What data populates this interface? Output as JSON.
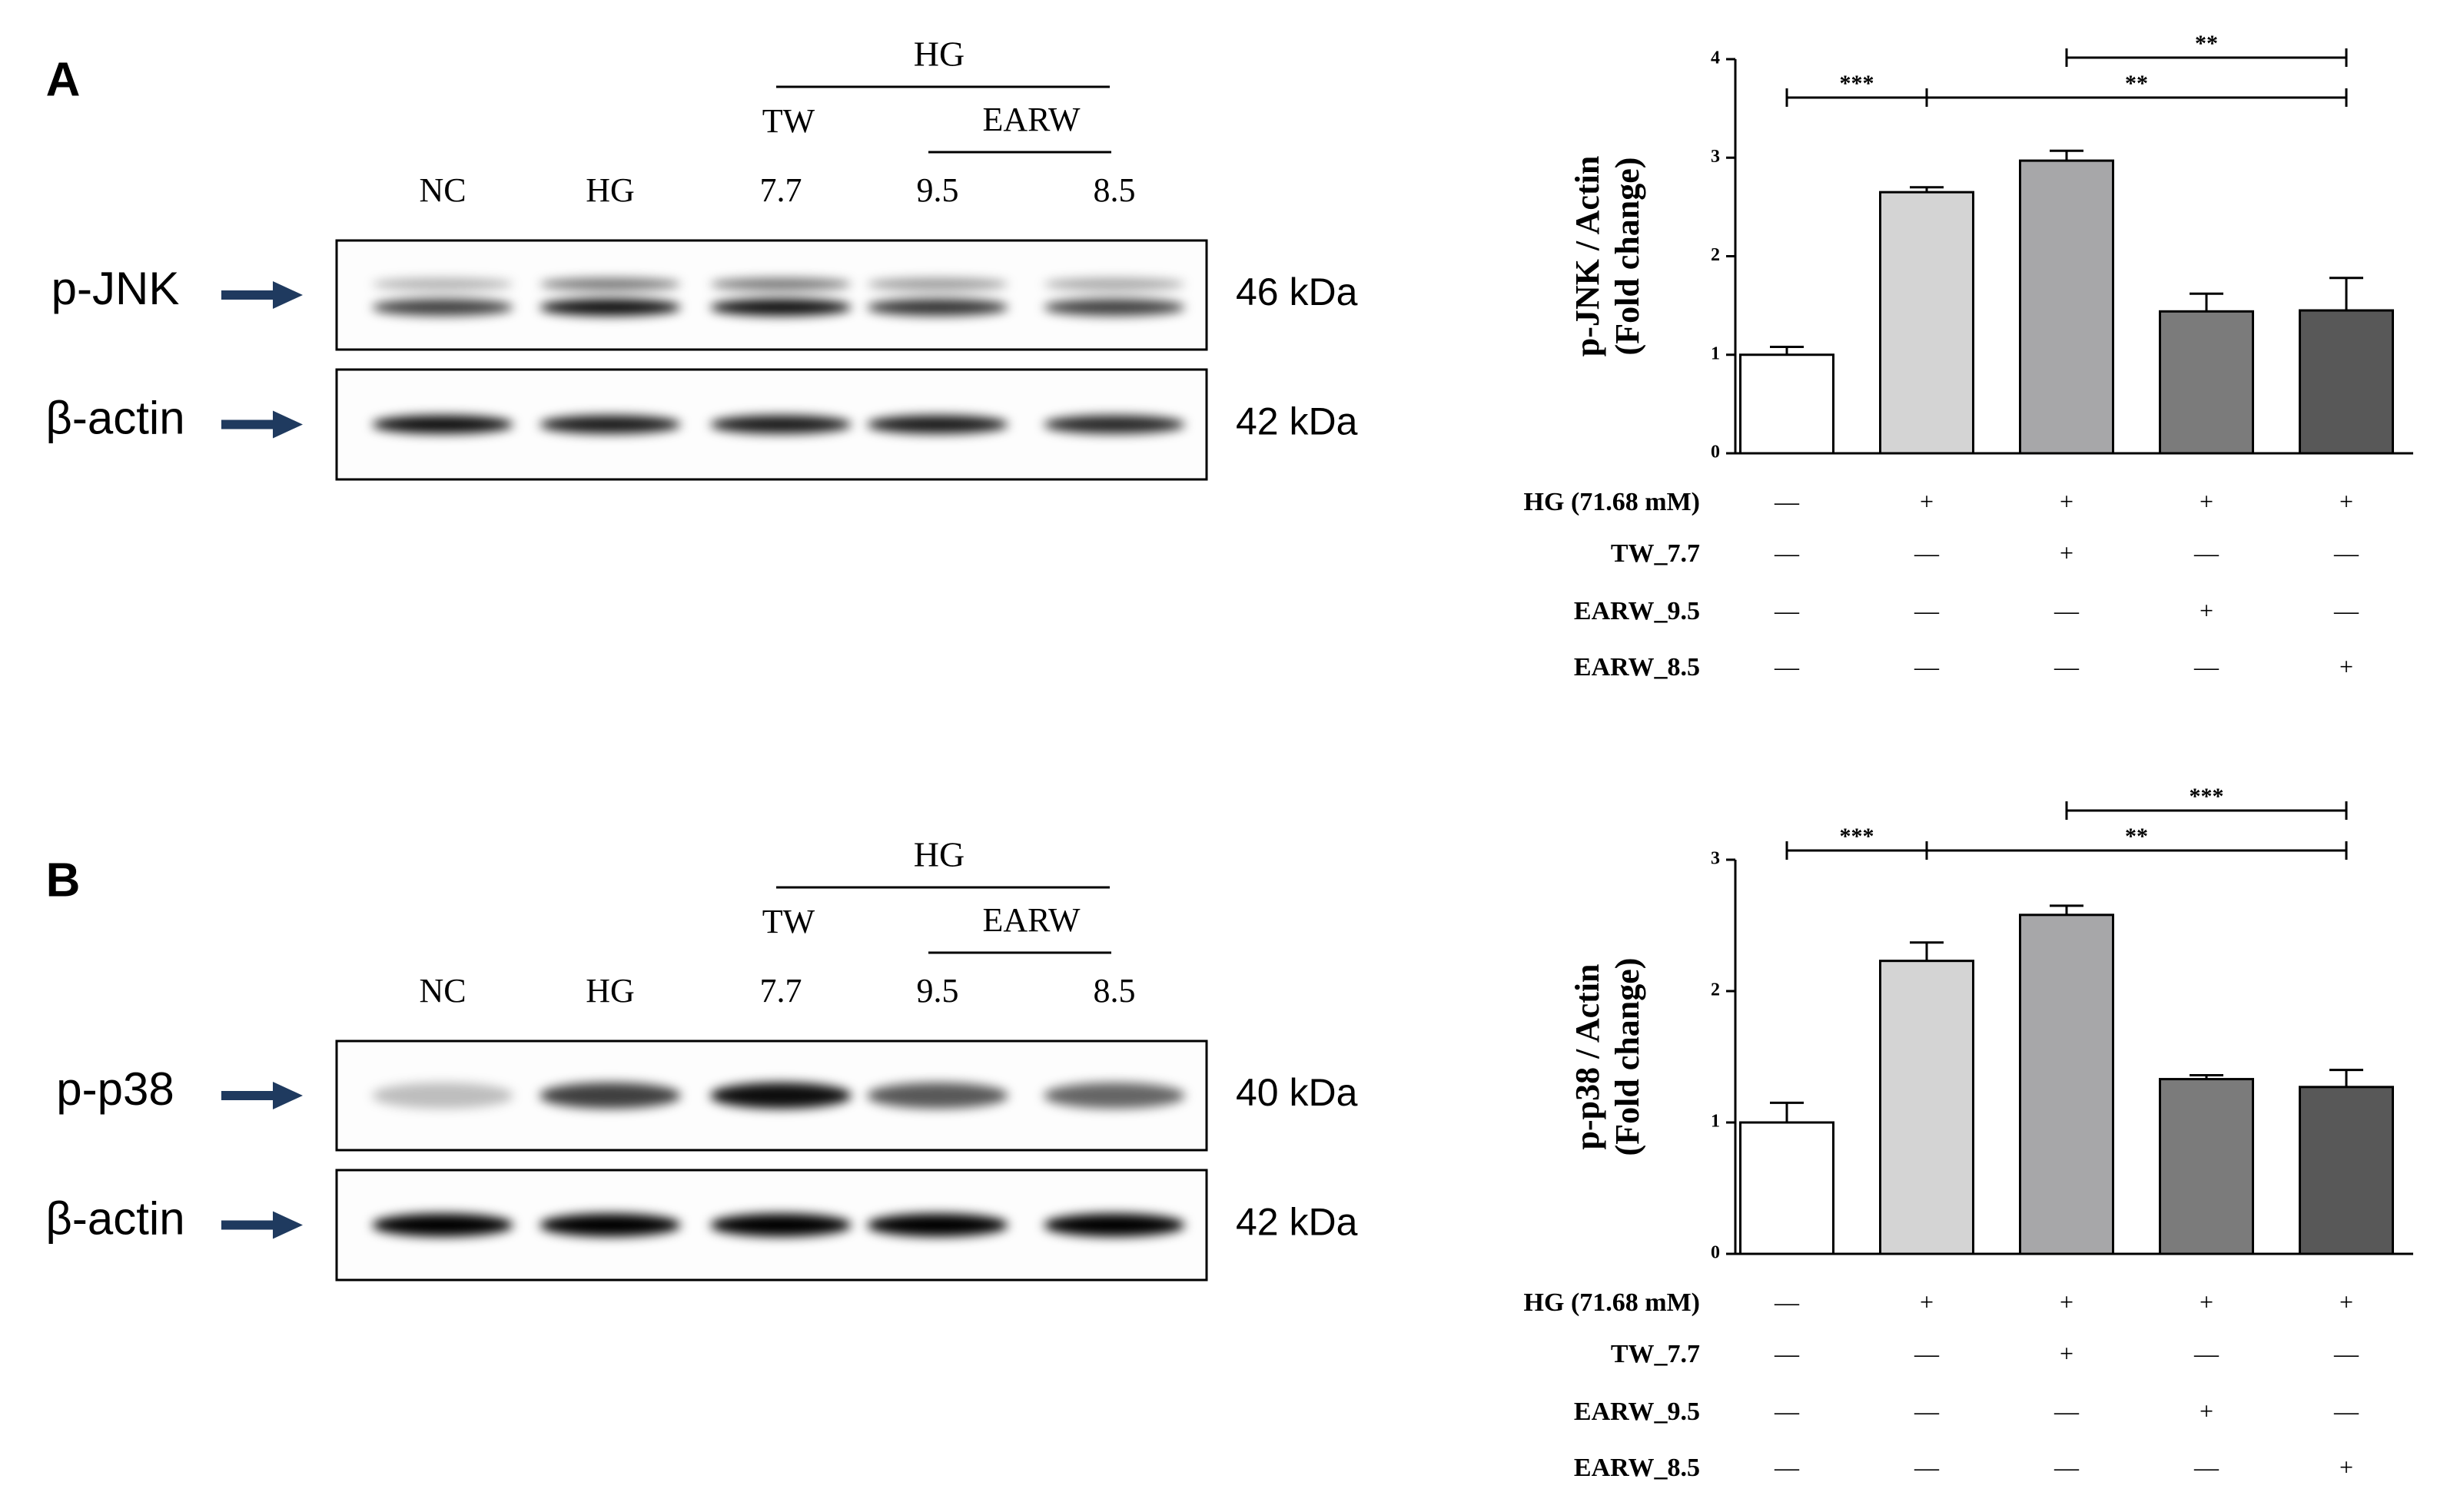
{
  "blots": [
    {
      "panel": "A",
      "group": "HG",
      "subgroups": [
        "TW",
        "EARW"
      ],
      "lanes": [
        "NC",
        "HG",
        "7.7",
        "9.5",
        "8.5"
      ],
      "rows": [
        {
          "name": "p-JNK",
          "size": "46 kDa"
        },
        {
          "name": "β-actin",
          "size": "42 kDa"
        }
      ]
    },
    {
      "panel": "B",
      "group": "HG",
      "subgroups": [
        "TW",
        "EARW"
      ],
      "lanes": [
        "NC",
        "HG",
        "7.7",
        "9.5",
        "8.5"
      ],
      "rows": [
        {
          "name": "p-p38",
          "size": "40 kDa"
        },
        {
          "name": "β-actin",
          "size": "42 kDa"
        }
      ]
    }
  ],
  "chart_data": [
    {
      "type": "bar",
      "ylabel": [
        "p-JNK / Actin",
        "(Fold change)"
      ],
      "values": [
        1.0,
        2.65,
        2.97,
        1.44,
        1.45
      ],
      "errors": [
        0.08,
        0.05,
        0.1,
        0.18,
        0.33
      ],
      "colors": [
        "#ffffff",
        "#d4d4d4",
        "#a7a7a9",
        "#7b7b7b",
        "#585858"
      ],
      "ylim": [
        0,
        4
      ],
      "yticks": [
        0,
        1,
        2,
        3,
        4
      ],
      "significance": [
        {
          "text": "***",
          "bars": [
            0,
            1
          ]
        },
        {
          "text": "**",
          "bars": [
            1,
            4
          ]
        },
        {
          "text": "**",
          "bars": [
            2,
            4
          ]
        }
      ],
      "treatments": [
        {
          "label": "HG (71.68 mM)",
          "signs": [
            "—",
            "+",
            "+",
            "+",
            "+"
          ]
        },
        {
          "label": "TW_7.7",
          "signs": [
            "—",
            "—",
            "+",
            "—",
            "—"
          ]
        },
        {
          "label": "EARW_9.5",
          "signs": [
            "—",
            "—",
            "—",
            "+",
            "—"
          ]
        },
        {
          "label": "EARW_8.5",
          "signs": [
            "—",
            "—",
            "—",
            "—",
            "+"
          ]
        }
      ]
    },
    {
      "type": "bar",
      "ylabel": [
        "p-p38 / Actin",
        "(Fold change)"
      ],
      "values": [
        1.0,
        2.23,
        2.58,
        1.33,
        1.27
      ],
      "errors": [
        0.15,
        0.14,
        0.07,
        0.03,
        0.13
      ],
      "colors": [
        "#ffffff",
        "#d4d4d4",
        "#a7a7a9",
        "#7b7b7b",
        "#585858"
      ],
      "ylim": [
        0,
        3
      ],
      "yticks": [
        0,
        1,
        2,
        3
      ],
      "significance": [
        {
          "text": "***",
          "bars": [
            0,
            1
          ]
        },
        {
          "text": "**",
          "bars": [
            1,
            4
          ]
        },
        {
          "text": "***",
          "bars": [
            2,
            4
          ]
        }
      ],
      "treatments": [
        {
          "label": "HG (71.68 mM)",
          "signs": [
            "—",
            "+",
            "+",
            "+",
            "+"
          ]
        },
        {
          "label": "TW_7.7",
          "signs": [
            "—",
            "—",
            "+",
            "—",
            "—"
          ]
        },
        {
          "label": "EARW_9.5",
          "signs": [
            "—",
            "—",
            "—",
            "+",
            "—"
          ]
        },
        {
          "label": "EARW_8.5",
          "signs": [
            "—",
            "—",
            "—",
            "—",
            "+"
          ]
        }
      ]
    }
  ]
}
